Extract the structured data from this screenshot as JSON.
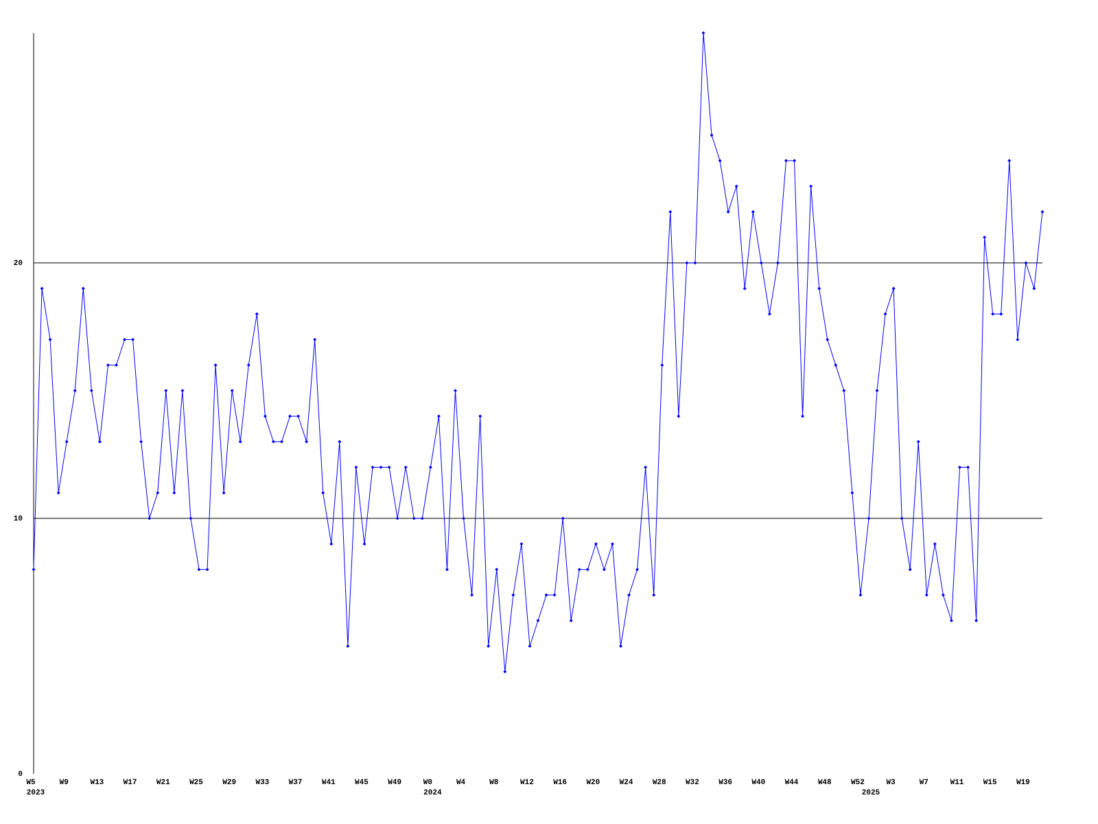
{
  "chart_data": {
    "type": "line",
    "categories": [
      "W5",
      null,
      null,
      null,
      "W9",
      null,
      null,
      null,
      "W13",
      null,
      null,
      null,
      "W17",
      null,
      null,
      null,
      "W21",
      null,
      null,
      null,
      "W25",
      null,
      null,
      null,
      "W29",
      null,
      null,
      null,
      "W33",
      null,
      null,
      null,
      "W37",
      null,
      null,
      null,
      "W41",
      null,
      null,
      null,
      "W45",
      null,
      null,
      null,
      "W49",
      null,
      null,
      null,
      "W0",
      null,
      null,
      null,
      "W4",
      null,
      null,
      null,
      "W8",
      null,
      null,
      null,
      "W12",
      null,
      null,
      null,
      "W16",
      null,
      null,
      null,
      "W20",
      null,
      null,
      null,
      "W24",
      null,
      null,
      null,
      "W28",
      null,
      null,
      null,
      "W32",
      null,
      null,
      null,
      "W36",
      null,
      null,
      null,
      "W40",
      null,
      null,
      null,
      "W44",
      null,
      null,
      null,
      "W48",
      null,
      null,
      null,
      "W52",
      null,
      null,
      null,
      "W3",
      null,
      null,
      null,
      "W7",
      null,
      null,
      null,
      "W11",
      null,
      null,
      null,
      "W15",
      null,
      null,
      null,
      "W19",
      null,
      null
    ],
    "year_labels": [
      "2023",
      null,
      null,
      null,
      null,
      null,
      null,
      null,
      null,
      null,
      null,
      null,
      null,
      null,
      null,
      null,
      null,
      null,
      null,
      null,
      null,
      null,
      null,
      null,
      null,
      null,
      null,
      null,
      null,
      null,
      null,
      null,
      null,
      null,
      null,
      null,
      null,
      null,
      null,
      null,
      null,
      null,
      null,
      null,
      null,
      null,
      null,
      null,
      "2024",
      null,
      null,
      null,
      null,
      null,
      null,
      null,
      null,
      null,
      null,
      null,
      null,
      null,
      null,
      null,
      null,
      null,
      null,
      null,
      null,
      null,
      null,
      null,
      null,
      null,
      null,
      null,
      null,
      null,
      null,
      null,
      null,
      null,
      null,
      null,
      null,
      null,
      null,
      null,
      null,
      null,
      null,
      null,
      null,
      null,
      null,
      null,
      null,
      null,
      null,
      null,
      null,
      "2025",
      null,
      null,
      null,
      null,
      null,
      null,
      null,
      null,
      null,
      null,
      null,
      null,
      null,
      null,
      null,
      null,
      null,
      null,
      null,
      null,
      null
    ],
    "series": [
      {
        "color": "#0000ff",
        "values": [
          8,
          19,
          17,
          11,
          13,
          15,
          19,
          15,
          13,
          16,
          16,
          17,
          17,
          13,
          10,
          11,
          15,
          11,
          15,
          10,
          8,
          8,
          16,
          11,
          15,
          13,
          16,
          18,
          14,
          13,
          13,
          14,
          14,
          13,
          17,
          11,
          9,
          13,
          5,
          12,
          9,
          12,
          12,
          12,
          10,
          12,
          10,
          10,
          12,
          14,
          8,
          15,
          10,
          7,
          14,
          5,
          8,
          4,
          7,
          9,
          5,
          6,
          7,
          7,
          10,
          6,
          8,
          8,
          9,
          8,
          9,
          5,
          7,
          8,
          12,
          7,
          16,
          22,
          14,
          20,
          20,
          29,
          25,
          24,
          22,
          23,
          19,
          22,
          20,
          18,
          20,
          24,
          24,
          14,
          23,
          19,
          17,
          16,
          15,
          11,
          7,
          10,
          15,
          18,
          19,
          10,
          8,
          13,
          7,
          9,
          7,
          6,
          12,
          12,
          6,
          21,
          18,
          18,
          24,
          17,
          20,
          19,
          22
        ]
      }
    ],
    "ylim": [
      0,
      29
    ],
    "yticks": [
      0,
      10,
      20
    ],
    "grid": true
  }
}
